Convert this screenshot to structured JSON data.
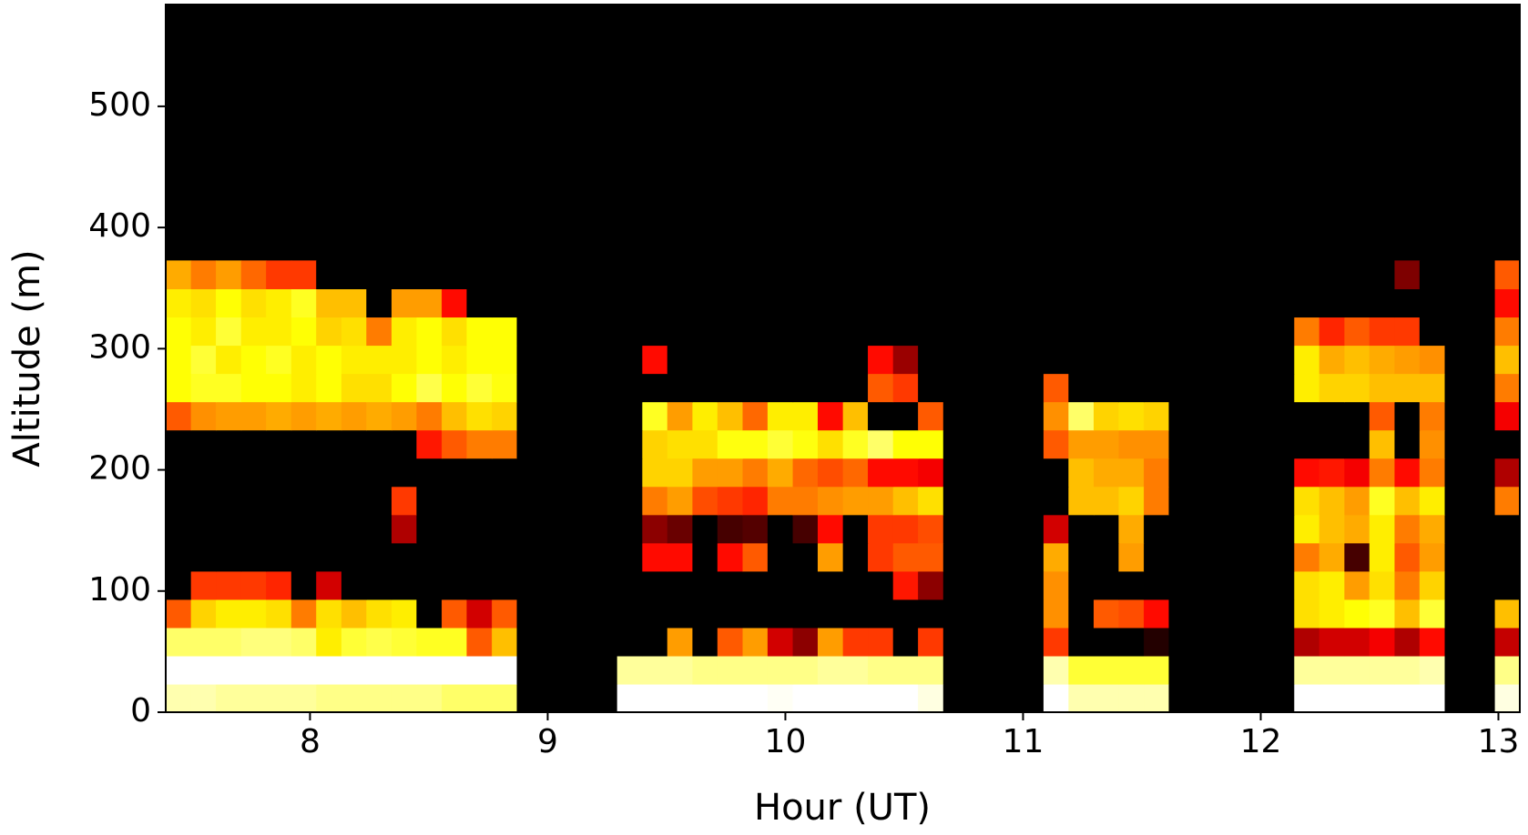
{
  "chart_data": {
    "type": "heatmap",
    "x_label": "Hour (UT)",
    "y_label": "Altitude (m)",
    "xlim": [
      7.393,
      13.09
    ],
    "ylim": [
      0,
      584
    ],
    "xticks": [
      8,
      9,
      10,
      11,
      12,
      13
    ],
    "yticks": [
      0,
      100,
      200,
      300,
      400,
      500
    ],
    "colormap": "hot",
    "zlim": [
      0,
      1
    ],
    "x_edges": [
      7.393,
      7.499,
      7.604,
      7.71,
      7.815,
      7.921,
      8.026,
      8.132,
      8.237,
      8.343,
      8.448,
      8.554,
      8.659,
      8.765,
      8.87,
      8.976,
      9.081,
      9.187,
      9.292,
      9.398,
      9.503,
      9.609,
      9.714,
      9.82,
      9.925,
      10.031,
      10.136,
      10.242,
      10.347,
      10.453,
      10.558,
      10.664,
      10.769,
      10.875,
      10.98,
      11.086,
      11.191,
      11.297,
      11.402,
      11.508,
      11.613,
      11.719,
      11.824,
      11.93,
      12.035,
      12.141,
      12.246,
      12.352,
      12.457,
      12.563,
      12.668,
      12.774,
      12.879,
      12.985,
      13.09
    ],
    "y_edges": [
      0,
      23.3,
      46.6,
      69.9,
      93.2,
      116.5,
      139.8,
      163.1,
      186.4,
      209.7,
      233,
      256.3,
      279.6,
      302.9,
      326.2,
      349.5,
      372.8
    ],
    "z": [
      [
        0.92,
        0.92,
        0.9,
        0.9,
        0.9,
        0.9,
        0.88,
        0.88,
        0.88,
        0.88,
        0.88,
        0.85,
        0.85,
        0.85,
        0,
        0,
        0,
        0,
        1,
        1,
        1,
        1,
        1,
        1,
        0.99,
        1,
        1,
        1,
        1,
        1,
        0.97,
        0,
        0,
        0,
        0,
        1,
        0.92,
        0.92,
        0.92,
        0.92,
        0,
        0,
        0,
        0,
        0,
        1,
        1,
        1,
        1,
        1,
        1,
        0,
        0,
        0.97
      ],
      [
        1,
        1,
        1,
        1,
        1,
        1,
        1,
        1,
        1,
        1,
        1,
        1,
        1,
        1,
        0,
        0,
        0,
        0,
        0.9,
        0.9,
        0.9,
        0.88,
        0.88,
        0.88,
        0.88,
        0.88,
        0.9,
        0.9,
        0.88,
        0.88,
        0.88,
        0,
        0,
        0,
        0,
        0.92,
        0.8,
        0.8,
        0.8,
        0.8,
        0,
        0,
        0,
        0,
        0,
        0.9,
        0.9,
        0.9,
        0.9,
        0.9,
        0.92,
        0,
        0,
        0.88
      ],
      [
        0.85,
        0.85,
        0.85,
        0.87,
        0.87,
        0.85,
        0.72,
        0.8,
        0.82,
        0.8,
        0.78,
        0.78,
        0.5,
        0.65,
        0,
        0,
        0,
        0,
        0,
        0,
        0.6,
        0,
        0.5,
        0.6,
        0.3,
        0.2,
        0.6,
        0.45,
        0.45,
        0,
        0.45,
        0,
        0,
        0,
        0,
        0.45,
        0,
        0,
        0,
        0.05,
        0,
        0,
        0,
        0,
        0,
        0.25,
        0.3,
        0.3,
        0.35,
        0.25,
        0.38,
        0,
        0,
        0.28
      ],
      [
        0.5,
        0.68,
        0.72,
        0.72,
        0.7,
        0.55,
        0.7,
        0.65,
        0.7,
        0.72,
        0,
        0.5,
        0.3,
        0.5,
        0,
        0,
        0,
        0,
        0,
        0,
        0,
        0,
        0,
        0,
        0,
        0,
        0,
        0,
        0,
        0,
        0,
        0,
        0,
        0,
        0,
        0.58,
        0,
        0.5,
        0.48,
        0.38,
        0,
        0,
        0,
        0,
        0,
        0.7,
        0.72,
        0.75,
        0.78,
        0.65,
        0.8,
        0,
        0,
        0.65
      ],
      [
        0,
        0.45,
        0.45,
        0.45,
        0.42,
        0,
        0.3,
        0,
        0,
        0,
        0,
        0,
        0,
        0,
        0,
        0,
        0,
        0,
        0,
        0,
        0,
        0,
        0,
        0,
        0,
        0,
        0,
        0,
        0,
        0.4,
        0.2,
        0,
        0,
        0,
        0,
        0.58,
        0,
        0,
        0,
        0,
        0,
        0,
        0,
        0,
        0,
        0.7,
        0.72,
        0.6,
        0.7,
        0.55,
        0.68,
        0,
        0,
        0
      ],
      [
        0,
        0,
        0,
        0,
        0,
        0,
        0,
        0,
        0,
        0,
        0,
        0,
        0,
        0,
        0,
        0,
        0,
        0,
        0,
        0.38,
        0.38,
        0,
        0.38,
        0.5,
        0,
        0,
        0.6,
        0,
        0.45,
        0.5,
        0.5,
        0,
        0,
        0,
        0,
        0.62,
        0,
        0,
        0.6,
        0,
        0,
        0,
        0,
        0,
        0,
        0.55,
        0.62,
        0.1,
        0.72,
        0.5,
        0.6,
        0,
        0,
        0
      ],
      [
        0,
        0,
        0,
        0,
        0,
        0,
        0,
        0,
        0,
        0.25,
        0,
        0,
        0,
        0,
        0,
        0,
        0,
        0,
        0,
        0.2,
        0.15,
        0,
        0.1,
        0.12,
        0,
        0.1,
        0.38,
        0,
        0.45,
        0.45,
        0.48,
        0,
        0,
        0,
        0,
        0.3,
        0,
        0,
        0.62,
        0,
        0,
        0,
        0,
        0,
        0,
        0.72,
        0.65,
        0.62,
        0.72,
        0.55,
        0.62,
        0,
        0,
        0
      ],
      [
        0,
        0,
        0,
        0,
        0,
        0,
        0,
        0,
        0,
        0.45,
        0,
        0,
        0,
        0,
        0,
        0,
        0,
        0,
        0,
        0.55,
        0.6,
        0.48,
        0.45,
        0.42,
        0.55,
        0.55,
        0.58,
        0.6,
        0.6,
        0.65,
        0.7,
        0,
        0,
        0,
        0,
        0,
        0.65,
        0.65,
        0.68,
        0.55,
        0,
        0,
        0,
        0,
        0,
        0.7,
        0.65,
        0.6,
        0.78,
        0.65,
        0.72,
        0,
        0,
        0.55
      ],
      [
        0,
        0,
        0,
        0,
        0,
        0,
        0,
        0,
        0,
        0,
        0,
        0,
        0,
        0,
        0,
        0,
        0,
        0,
        0,
        0.68,
        0.68,
        0.6,
        0.6,
        0.55,
        0.62,
        0.52,
        0.48,
        0.52,
        0.38,
        0.38,
        0.35,
        0,
        0,
        0,
        0,
        0,
        0.65,
        0.62,
        0.62,
        0.55,
        0,
        0,
        0,
        0,
        0,
        0.38,
        0.4,
        0.35,
        0.55,
        0.38,
        0.55,
        0,
        0,
        0.25
      ],
      [
        0,
        0,
        0,
        0,
        0,
        0,
        0,
        0,
        0,
        0,
        0.4,
        0.5,
        0.55,
        0.55,
        0,
        0,
        0,
        0,
        0,
        0.68,
        0.7,
        0.7,
        0.76,
        0.76,
        0.8,
        0.76,
        0.7,
        0.78,
        0.85,
        0.75,
        0.75,
        0,
        0,
        0,
        0,
        0.5,
        0.6,
        0.6,
        0.58,
        0.58,
        0,
        0,
        0,
        0,
        0,
        0,
        0,
        0,
        0.65,
        0,
        0.58,
        0,
        0,
        0
      ],
      [
        0.5,
        0.58,
        0.6,
        0.6,
        0.62,
        0.6,
        0.62,
        0.6,
        0.62,
        0.6,
        0.55,
        0.65,
        0.7,
        0.68,
        0,
        0,
        0,
        0,
        0,
        0.78,
        0.6,
        0.72,
        0.65,
        0.52,
        0.72,
        0.72,
        0.38,
        0.65,
        0,
        0,
        0.5,
        0,
        0,
        0,
        0,
        0.58,
        0.85,
        0.68,
        0.7,
        0.68,
        0,
        0,
        0,
        0,
        0,
        0,
        0,
        0,
        0.5,
        0,
        0.55,
        0,
        0,
        0.35
      ],
      [
        0.75,
        0.78,
        0.78,
        0.75,
        0.75,
        0.72,
        0.75,
        0.7,
        0.7,
        0.75,
        0.82,
        0.75,
        0.8,
        0.76,
        0,
        0,
        0,
        0,
        0,
        0,
        0,
        0,
        0,
        0,
        0,
        0,
        0,
        0,
        0.5,
        0.45,
        0,
        0,
        0,
        0,
        0,
        0.5,
        0,
        0,
        0,
        0,
        0,
        0,
        0,
        0,
        0,
        0.72,
        0.68,
        0.68,
        0.65,
        0.65,
        0.65,
        0,
        0,
        0.55
      ],
      [
        0.75,
        0.8,
        0.72,
        0.75,
        0.78,
        0.72,
        0.75,
        0.72,
        0.72,
        0.72,
        0.75,
        0.72,
        0.75,
        0.75,
        0,
        0,
        0,
        0,
        0,
        0.38,
        0,
        0,
        0,
        0,
        0,
        0,
        0,
        0,
        0.38,
        0.22,
        0,
        0,
        0,
        0,
        0,
        0,
        0,
        0,
        0,
        0,
        0,
        0,
        0,
        0,
        0,
        0.72,
        0.62,
        0.65,
        0.62,
        0.6,
        0.58,
        0,
        0,
        0.65
      ],
      [
        0.75,
        0.72,
        0.8,
        0.72,
        0.72,
        0.75,
        0.68,
        0.7,
        0.55,
        0.72,
        0.75,
        0.7,
        0.75,
        0.75,
        0,
        0,
        0,
        0,
        0,
        0,
        0,
        0,
        0,
        0,
        0,
        0,
        0,
        0,
        0,
        0,
        0,
        0,
        0,
        0,
        0,
        0,
        0,
        0,
        0,
        0,
        0,
        0,
        0,
        0,
        0,
        0.55,
        0.42,
        0.5,
        0.45,
        0.45,
        0,
        0,
        0,
        0.55
      ],
      [
        0.72,
        0.7,
        0.75,
        0.7,
        0.72,
        0.78,
        0.65,
        0.65,
        0,
        0.6,
        0.6,
        0.38,
        0,
        0,
        0,
        0,
        0,
        0,
        0,
        0,
        0,
        0,
        0,
        0,
        0,
        0,
        0,
        0,
        0,
        0,
        0,
        0,
        0,
        0,
        0,
        0,
        0,
        0,
        0,
        0,
        0,
        0,
        0,
        0,
        0,
        0,
        0,
        0,
        0,
        0,
        0,
        0,
        0,
        0.38
      ],
      [
        0.62,
        0.55,
        0.6,
        0.52,
        0.45,
        0.45,
        0,
        0,
        0,
        0,
        0,
        0,
        0,
        0,
        0,
        0,
        0,
        0,
        0,
        0,
        0,
        0,
        0,
        0,
        0,
        0,
        0,
        0,
        0,
        0,
        0,
        0,
        0,
        0,
        0,
        0,
        0,
        0,
        0,
        0,
        0,
        0,
        0,
        0,
        0,
        0,
        0,
        0,
        0,
        0.18,
        0,
        0,
        0,
        0.5
      ]
    ]
  }
}
